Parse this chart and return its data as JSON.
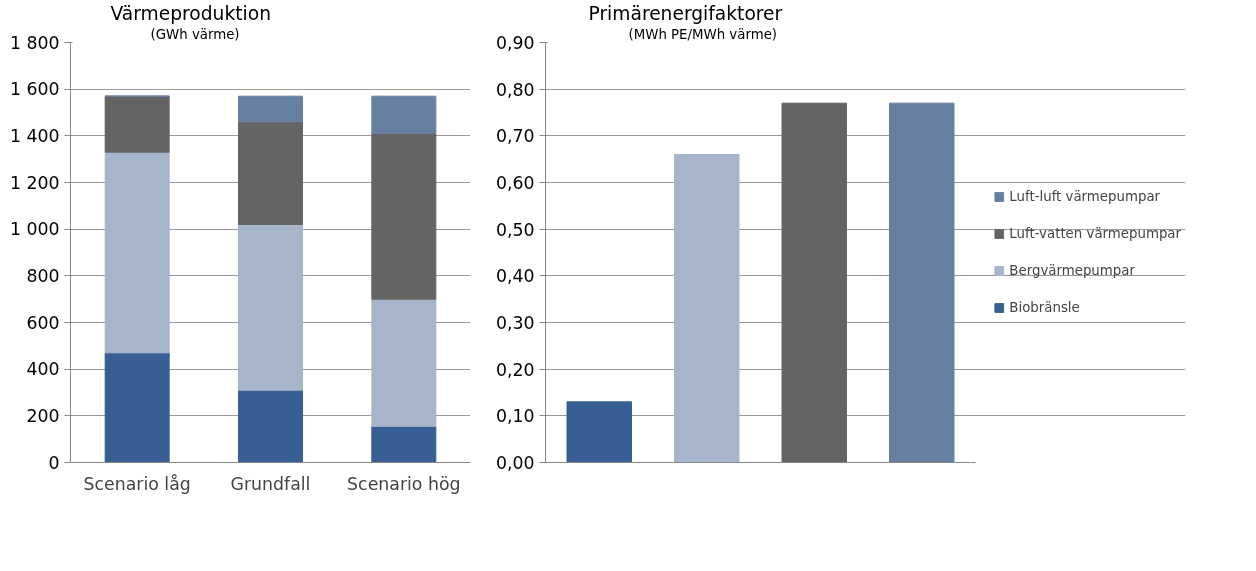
{
  "chart_data": [
    {
      "type": "bar",
      "title": "Värmeproduktion",
      "subtitle": "(GWh värme)",
      "stacked": true,
      "categories": [
        "Scenario låg",
        "Grundfall",
        "Scenario hög"
      ],
      "series": [
        {
          "name": "Biobränsle",
          "color": "#375f93",
          "values": [
            470,
            310,
            155
          ]
        },
        {
          "name": "Bergvärmepumpar",
          "color": "#a7b5ca",
          "values": [
            860,
            710,
            545
          ]
        },
        {
          "name": "Luft-vatten värmepumpar",
          "color": "#646464",
          "values": [
            240,
            440,
            710
          ]
        },
        {
          "name": "Luft-luft värmepumpar",
          "color": "#6780a2",
          "values": [
            0,
            110,
            160
          ]
        }
      ],
      "ylim": [
        0,
        1800
      ],
      "yticks": [
        0,
        200,
        400,
        600,
        800,
        {
          "value": 1000,
          "label": "1 000"
        },
        {
          "value": 1200,
          "label": "1 200"
        },
        {
          "value": 1400,
          "label": "1 400"
        },
        {
          "value": 1600,
          "label": "1 600"
        },
        {
          "value": 1800,
          "label": "1 800"
        }
      ],
      "grid": "y",
      "legend": "right"
    },
    {
      "type": "bar",
      "title": "Primärenergifaktorer",
      "subtitle": "(MWh PE/MWh värme)",
      "categories": [
        null,
        null,
        null,
        null
      ],
      "values": [
        0.13,
        0.66,
        0.77,
        0.77
      ],
      "colors": [
        "#375f93",
        "#a7b5ca",
        "#646464",
        "#6780a2"
      ],
      "ylim": [
        0,
        0.9
      ],
      "yticks": [
        {
          "value": 0,
          "label": "0,00"
        },
        {
          "value": 0.1,
          "label": "0,10"
        },
        {
          "value": 0.2,
          "label": "0,20"
        },
        {
          "value": 0.3,
          "label": "0,30"
        },
        {
          "value": 0.4,
          "label": "0,40"
        },
        {
          "value": 0.5,
          "label": "0,50"
        },
        {
          "value": 0.6,
          "label": "0,60"
        },
        {
          "value": 0.7,
          "label": "0,70"
        },
        {
          "value": 0.8,
          "label": "0,80"
        },
        {
          "value": 0.9,
          "label": "0,90"
        }
      ],
      "grid": "y",
      "tick_labels": "y"
    }
  ]
}
